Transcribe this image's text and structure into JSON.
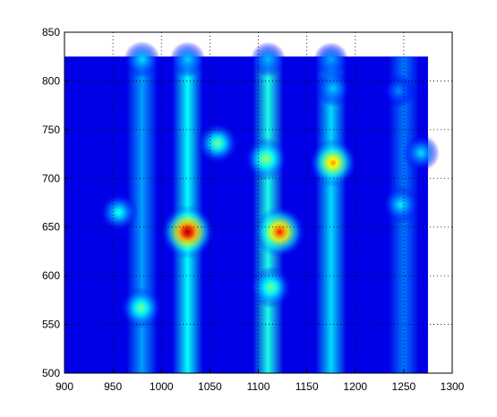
{
  "chart_data": {
    "type": "heatmap",
    "title": "",
    "xlabel": "",
    "ylabel": "",
    "xlim": [
      900,
      1300
    ],
    "ylim": [
      500,
      850
    ],
    "data_extent": {
      "x": [
        900,
        1275
      ],
      "y": [
        500,
        825
      ]
    },
    "grid": true,
    "grid_style": "dotted",
    "colormap": "jet",
    "x_ticks": [
      900,
      950,
      1000,
      1050,
      1100,
      1150,
      1200,
      1250,
      1300
    ],
    "y_ticks": [
      500,
      550,
      600,
      650,
      700,
      750,
      800,
      850
    ],
    "x_tick_labels": [
      "900",
      "950",
      "1000",
      "1050",
      "1100",
      "1150",
      "1200",
      "1250",
      "1300"
    ],
    "y_tick_labels": [
      "500",
      "550",
      "600",
      "650",
      "700",
      "750",
      "800",
      "850"
    ],
    "column_bands": [
      {
        "x": 980,
        "intensity": 0.18
      },
      {
        "x": 1027,
        "intensity": 0.28
      },
      {
        "x": 1110,
        "intensity": 0.3
      },
      {
        "x": 1175,
        "intensity": 0.24
      },
      {
        "x": 1250,
        "intensity": 0.14
      }
    ],
    "peaks": [
      {
        "x": 1027,
        "y": 645,
        "intensity": 1.0
      },
      {
        "x": 1122,
        "y": 645,
        "intensity": 0.86
      },
      {
        "x": 1177,
        "y": 716,
        "intensity": 0.72
      },
      {
        "x": 1108,
        "y": 720,
        "intensity": 0.5
      },
      {
        "x": 1058,
        "y": 736,
        "intensity": 0.45
      },
      {
        "x": 1113,
        "y": 588,
        "intensity": 0.45
      },
      {
        "x": 979,
        "y": 567,
        "intensity": 0.45
      },
      {
        "x": 956,
        "y": 665,
        "intensity": 0.35
      },
      {
        "x": 1247,
        "y": 673,
        "intensity": 0.3
      },
      {
        "x": 1268,
        "y": 726,
        "intensity": 0.28
      },
      {
        "x": 1177,
        "y": 792,
        "intensity": 0.26
      },
      {
        "x": 980,
        "y": 822,
        "intensity": 0.28
      },
      {
        "x": 1027,
        "y": 822,
        "intensity": 0.26
      },
      {
        "x": 1110,
        "y": 822,
        "intensity": 0.24
      },
      {
        "x": 1175,
        "y": 822,
        "intensity": 0.22
      },
      {
        "x": 1245,
        "y": 790,
        "intensity": 0.18
      }
    ]
  }
}
